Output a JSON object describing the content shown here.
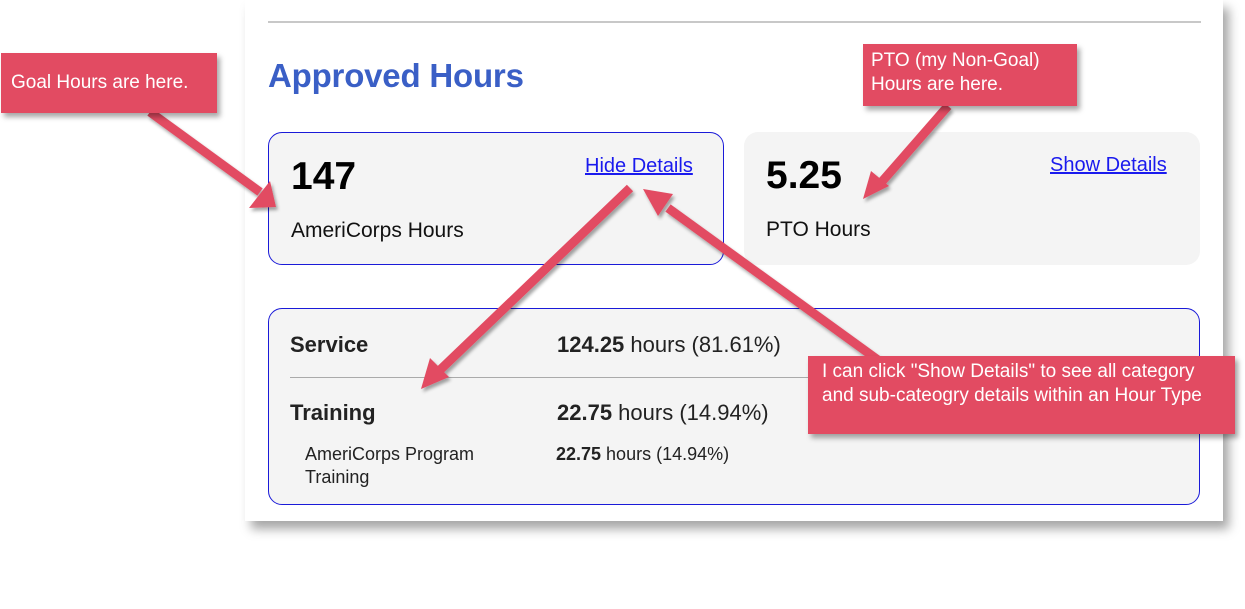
{
  "page": {
    "title": "Approved Hours"
  },
  "cards": [
    {
      "value": "147",
      "label": "AmeriCorps Hours",
      "link": "Hide Details"
    },
    {
      "value": "5.25",
      "label": "PTO Hours",
      "link": "Show Details"
    }
  ],
  "details": {
    "categories": [
      {
        "name": "Service",
        "hours": "124.25",
        "suffix": " hours (81.61%)"
      },
      {
        "name": "Training",
        "hours": "22.75",
        "suffix": " hours (14.94%)"
      }
    ],
    "subcategories": [
      {
        "name": "AmeriCorps Program Training",
        "hours": "22.75",
        "suffix": " hours (14.94%)"
      }
    ]
  },
  "callouts": {
    "goal": "Goal Hours are here.",
    "pto": "PTO (my Non-Goal) Hours are here.",
    "show_details": "I can click \"Show Details\" to see all category and sub-cateogry details within an Hour Type"
  },
  "colors": {
    "title": "#3a5fc6",
    "link": "#1a1aee",
    "card_border": "#1a1ad8",
    "callout": "#e24b62"
  }
}
